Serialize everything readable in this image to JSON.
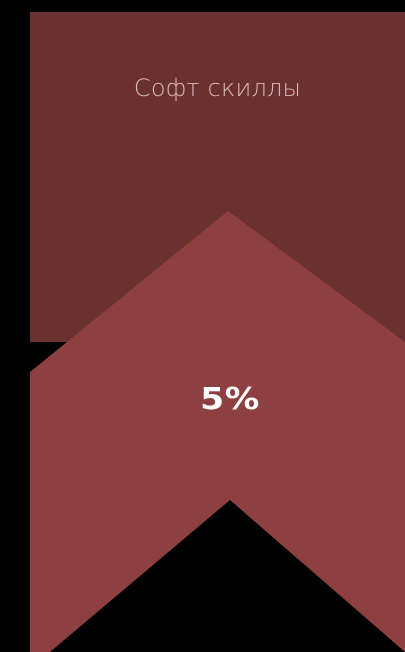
{
  "card": {
    "title": "Софт скиллы",
    "value_text": "5%",
    "value_fraction": 0.05
  },
  "colors": {
    "background": "#000000",
    "top_panel": "#6b3030",
    "chevron": "#8e4040",
    "title_text": "#d9bcbc",
    "value_text": "#ffffff"
  }
}
